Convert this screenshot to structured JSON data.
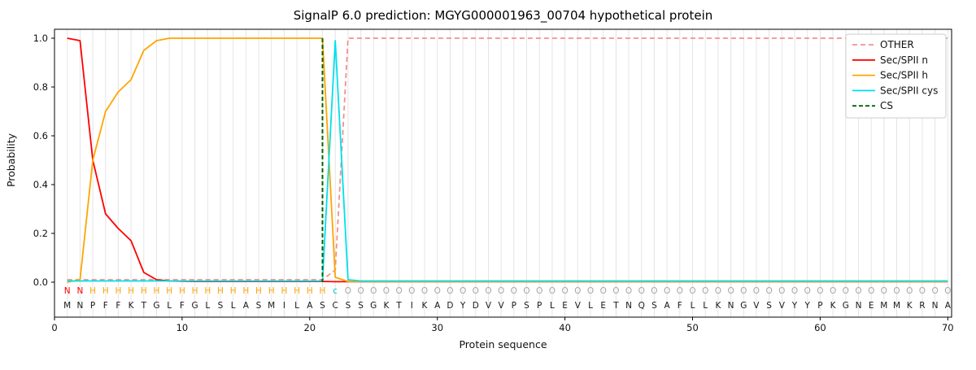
{
  "chart_data": {
    "type": "line",
    "title": "SignalP 6.0 prediction: MGYG000001963_00704 hypothetical protein",
    "xlabel": "Protein sequence",
    "ylabel": "Probability",
    "xlim": [
      0,
      70.3
    ],
    "ylim": [
      0,
      1.0
    ],
    "xticks": [
      0,
      10,
      20,
      30,
      40,
      50,
      60,
      70
    ],
    "yticks": [
      0,
      0.2,
      0.4,
      0.6,
      0.8,
      1.0
    ],
    "grid": "vertical-per-residue",
    "legend_position": "upper-right",
    "sequence": "MNPFFKTGLFGLSLASMILASCSSGKTIKADYDVVPSPLEVLETNQSAFLLKNGVSVYYPKGNEMMKRNA",
    "position_labels": "NNHHHHHHHHHHHHHHHHHHHcOOOOOOOOOOOOOOOOOOOOOOOOOOOOOOOOOOOOOOOOOOOOOOOO",
    "series": [
      {
        "name": "OTHER",
        "color": "#f29090",
        "dash": "6,4",
        "values": [
          0.01,
          0.01,
          0.01,
          0.01,
          0.01,
          0.01,
          0.01,
          0.01,
          0.01,
          0.01,
          0.01,
          0.01,
          0.01,
          0.01,
          0.01,
          0.01,
          0.01,
          0.01,
          0.01,
          0.01,
          0.01,
          0.05,
          1.0,
          1.0,
          1.0,
          1.0,
          1.0,
          1.0,
          1.0,
          1.0,
          1.0,
          1.0,
          1.0,
          1.0,
          1.0,
          1.0,
          1.0,
          1.0,
          1.0,
          1.0,
          1.0,
          1.0,
          1.0,
          1.0,
          1.0,
          1.0,
          1.0,
          1.0,
          1.0,
          1.0,
          1.0,
          1.0,
          1.0,
          1.0,
          1.0,
          1.0,
          1.0,
          1.0,
          1.0,
          1.0,
          1.0,
          1.0,
          1.0,
          1.0,
          1.0,
          1.0,
          1.0,
          1.0,
          1.0,
          1.0
        ]
      },
      {
        "name": "Sec/SPII n",
        "color": "#ff0000",
        "dash": null,
        "values": [
          1.0,
          0.99,
          0.5,
          0.28,
          0.22,
          0.17,
          0.04,
          0.01,
          0.005,
          0.004,
          0.003,
          0.003,
          0.003,
          0.003,
          0.003,
          0.003,
          0.003,
          0.003,
          0.003,
          0.003,
          0.003,
          0.002,
          0.002,
          0.002,
          0.002,
          0.002,
          0.002,
          0.002,
          0.002,
          0.002,
          0.002,
          0.002,
          0.002,
          0.002,
          0.002,
          0.002,
          0.002,
          0.002,
          0.002,
          0.002,
          0.002,
          0.002,
          0.002,
          0.002,
          0.002,
          0.002,
          0.002,
          0.002,
          0.002,
          0.002,
          0.002,
          0.002,
          0.002,
          0.002,
          0.002,
          0.002,
          0.002,
          0.002,
          0.002,
          0.002,
          0.002,
          0.002,
          0.002,
          0.002,
          0.002,
          0.002,
          0.002,
          0.002,
          0.002,
          0.002
        ]
      },
      {
        "name": "Sec/SPII h",
        "color": "#ffa500",
        "dash": null,
        "values": [
          0.0,
          0.01,
          0.5,
          0.7,
          0.78,
          0.83,
          0.95,
          0.99,
          1.0,
          1.0,
          1.0,
          1.0,
          1.0,
          1.0,
          1.0,
          1.0,
          1.0,
          1.0,
          1.0,
          1.0,
          1.0,
          0.02,
          0.003,
          0.003,
          0.003,
          0.003,
          0.003,
          0.003,
          0.003,
          0.003,
          0.003,
          0.003,
          0.003,
          0.003,
          0.003,
          0.003,
          0.003,
          0.003,
          0.003,
          0.003,
          0.003,
          0.003,
          0.003,
          0.003,
          0.003,
          0.003,
          0.003,
          0.003,
          0.003,
          0.003,
          0.003,
          0.003,
          0.003,
          0.003,
          0.003,
          0.003,
          0.003,
          0.003,
          0.003,
          0.003,
          0.003,
          0.003,
          0.003,
          0.003,
          0.003,
          0.003,
          0.003,
          0.003,
          0.003,
          0.003
        ]
      },
      {
        "name": "Sec/SPII cys",
        "color": "#00e0ea",
        "dash": null,
        "values": [
          0.005,
          0.005,
          0.005,
          0.005,
          0.005,
          0.005,
          0.005,
          0.005,
          0.005,
          0.005,
          0.005,
          0.005,
          0.005,
          0.005,
          0.005,
          0.005,
          0.005,
          0.005,
          0.005,
          0.005,
          0.005,
          0.99,
          0.01,
          0.005,
          0.005,
          0.005,
          0.005,
          0.005,
          0.005,
          0.005,
          0.005,
          0.005,
          0.005,
          0.005,
          0.005,
          0.005,
          0.005,
          0.005,
          0.005,
          0.005,
          0.005,
          0.005,
          0.005,
          0.005,
          0.005,
          0.005,
          0.005,
          0.005,
          0.005,
          0.005,
          0.005,
          0.005,
          0.005,
          0.005,
          0.005,
          0.005,
          0.005,
          0.005,
          0.005,
          0.005,
          0.005,
          0.005,
          0.005,
          0.005,
          0.005,
          0.005,
          0.005,
          0.005,
          0.005,
          0.005
        ]
      }
    ],
    "cs": {
      "name": "CS",
      "x": 21,
      "color": "#006400"
    },
    "legend": {
      "entries": [
        "OTHER",
        "Sec/SPII n",
        "Sec/SPII h",
        "Sec/SPII cys",
        "CS"
      ]
    },
    "colors": {
      "background": "#ffffff",
      "grid": "#e4e4e4",
      "axis": "#000000",
      "text": "#111111",
      "sequence": "#1a1a1a"
    },
    "label_colors": {
      "N": "#ff0000",
      "H": "#ffa500",
      "c": "#00c4cf",
      "O": "#a6a6a6"
    }
  }
}
